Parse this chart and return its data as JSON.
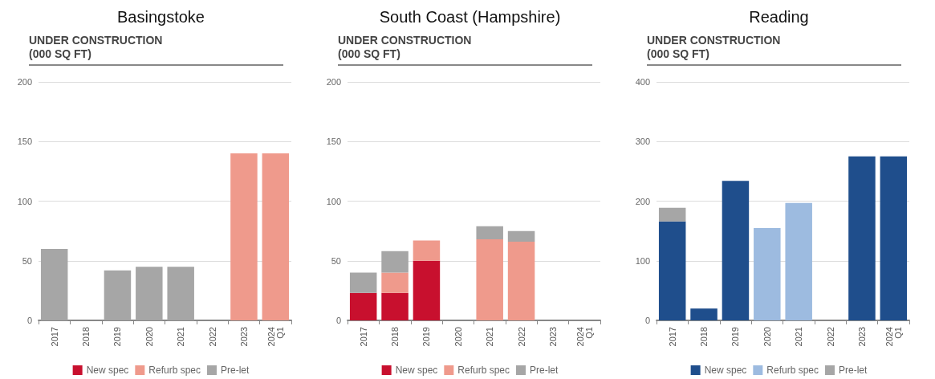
{
  "chart_data": [
    {
      "type": "bar",
      "title": "Basingstoke",
      "subtitle": "UNDER CONSTRUCTION\n(000 SQ FT)",
      "categories": [
        "2017",
        "2018",
        "2019",
        "2020",
        "2021",
        "2022",
        "2023",
        "2024\nQ1"
      ],
      "stacked": true,
      "series": [
        {
          "name": "New spec",
          "color": "#c8102e",
          "values": [
            0,
            0,
            0,
            0,
            0,
            0,
            0,
            0
          ]
        },
        {
          "name": "Refurb spec",
          "color": "#ef9a8c",
          "values": [
            0,
            0,
            0,
            0,
            0,
            0,
            140,
            140
          ]
        },
        {
          "name": "Pre-let",
          "color": "#a6a6a6",
          "values": [
            60,
            0,
            42,
            45,
            45,
            0,
            0,
            0
          ]
        }
      ],
      "ylim": [
        0,
        200
      ],
      "yticks": [
        0,
        50,
        100,
        150,
        200
      ],
      "grid": "y",
      "legend": "bottom"
    },
    {
      "type": "bar",
      "title": "South Coast (Hampshire)",
      "subtitle": "UNDER CONSTRUCTION\n(000 SQ FT)",
      "categories": [
        "2017",
        "2018",
        "2019",
        "2020",
        "2021",
        "2022",
        "2023",
        "2024\nQ1"
      ],
      "stacked": true,
      "series": [
        {
          "name": "New spec",
          "color": "#c8102e",
          "values": [
            23,
            23,
            50,
            0,
            0,
            0,
            0,
            0
          ]
        },
        {
          "name": "Refurb spec",
          "color": "#ef9a8c",
          "values": [
            0,
            17,
            17,
            0,
            68,
            66,
            0,
            0
          ]
        },
        {
          "name": "Pre-let",
          "color": "#a6a6a6",
          "values": [
            17,
            18,
            0,
            0,
            11,
            9,
            0,
            0
          ]
        }
      ],
      "ylim": [
        0,
        200
      ],
      "yticks": [
        0,
        50,
        100,
        150,
        200
      ],
      "grid": "y",
      "legend": "bottom"
    },
    {
      "type": "bar",
      "title": "Reading",
      "subtitle": "UNDER CONSTRUCTION\n(000 SQ FT)",
      "categories": [
        "2017",
        "2018",
        "2019",
        "2020",
        "2021",
        "2022",
        "2023",
        "2024\nQ1"
      ],
      "stacked": true,
      "series": [
        {
          "name": "New spec",
          "color": "#1f4e8c",
          "values": [
            166,
            20,
            234,
            0,
            0,
            0,
            275,
            275
          ]
        },
        {
          "name": "Refurb spec",
          "color": "#9dbbe0",
          "values": [
            0,
            0,
            0,
            155,
            197,
            0,
            0,
            0
          ]
        },
        {
          "name": "Pre-let",
          "color": "#a6a6a6",
          "values": [
            23,
            0,
            0,
            0,
            0,
            0,
            0,
            0
          ]
        }
      ],
      "ylim": [
        0,
        400
      ],
      "yticks": [
        0,
        100,
        200,
        300,
        400
      ],
      "grid": "y",
      "legend": "bottom"
    }
  ]
}
